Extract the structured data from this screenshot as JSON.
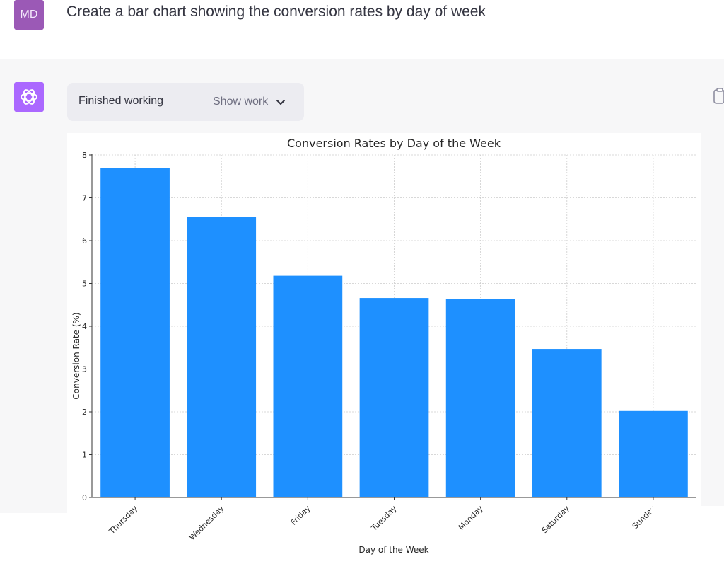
{
  "user_message": {
    "avatar_initials": "MD",
    "text": "Create a bar chart showing the conversion rates by day of week"
  },
  "assistant_message": {
    "avatar_icon": "openai-logo-icon",
    "status": "Finished working",
    "toggle_label": "Show work",
    "toggle_icon": "chevron-down-icon",
    "copy_icon": "clipboard-icon"
  },
  "colors": {
    "user_avatar": "#9b59b6",
    "bot_avatar": "#ab68ff",
    "bar": "#1e90ff"
  },
  "chart_data": {
    "type": "bar",
    "title": "Conversion Rates by Day of the Week",
    "xlabel": "Day of the Week",
    "ylabel": "Conversion Rate (%)",
    "categories": [
      "Thursday",
      "Wednesday",
      "Friday",
      "Tuesday",
      "Monday",
      "Saturday",
      "Sunday"
    ],
    "values": [
      7.7,
      6.56,
      5.18,
      4.66,
      4.64,
      3.47,
      2.02
    ],
    "ylim": [
      0,
      8
    ],
    "yticks": [
      0,
      1,
      2,
      3,
      4,
      5,
      6,
      7,
      8
    ],
    "grid": true,
    "bar_color": "#1e90ff"
  }
}
